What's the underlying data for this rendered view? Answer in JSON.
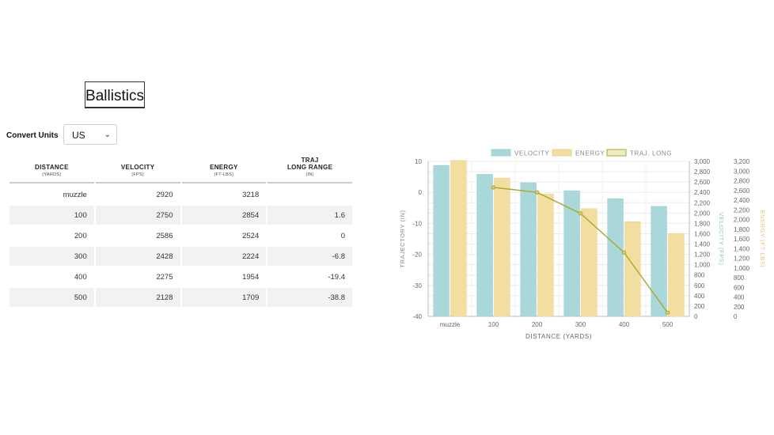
{
  "page": {
    "title": "Ballistics"
  },
  "units": {
    "label": "Convert Units",
    "selected": "US"
  },
  "table": {
    "headers": [
      {
        "title": "DISTANCE",
        "sub": "(YARDS)"
      },
      {
        "title": "VELOCITY",
        "sub": "(FPS)"
      },
      {
        "title": "ENERGY",
        "sub": "(FT-LBS)"
      },
      {
        "title": "TRAJ",
        "title2": "LONG RANGE",
        "sub": "(IN)"
      }
    ],
    "rows": [
      [
        "muzzle",
        "2920",
        "3218",
        ""
      ],
      [
        "100",
        "2750",
        "2854",
        "1.6"
      ],
      [
        "200",
        "2586",
        "2524",
        "0"
      ],
      [
        "300",
        "2428",
        "2224",
        "-6.8"
      ],
      [
        "400",
        "2275",
        "1954",
        "-19.4"
      ],
      [
        "500",
        "2128",
        "1709",
        "-38.8"
      ]
    ]
  },
  "chart_data": {
    "type": "bar",
    "categories": [
      "muzzle",
      "100",
      "200",
      "300",
      "400",
      "500"
    ],
    "series": [
      {
        "name": "VELOCITY",
        "type": "bar",
        "axis": "velocity",
        "values": [
          2920,
          2750,
          2586,
          2428,
          2275,
          2128
        ],
        "color": "#aad7da"
      },
      {
        "name": "ENERGY",
        "type": "bar",
        "axis": "energy",
        "values": [
          3218,
          2854,
          2524,
          2224,
          1954,
          1709
        ],
        "color": "#f2dea0"
      },
      {
        "name": "TRAJ. LONG",
        "type": "line",
        "axis": "trajectory",
        "values": [
          null,
          1.6,
          0,
          -6.8,
          -19.4,
          -38.8
        ],
        "color": "#a8a82c"
      }
    ],
    "xlabel": "DISTANCE (YARDS)",
    "axes": {
      "trajectory": {
        "label": "TRAJECTORY (IN)",
        "min": -40,
        "max": 10,
        "ticks": [
          "10",
          "0",
          "-10",
          "-20",
          "-30",
          "-40"
        ],
        "tick_values": [
          10,
          0,
          -10,
          -20,
          -30,
          -40
        ]
      },
      "velocity": {
        "label": "VELOCITY (FPS)",
        "min": 0,
        "max": 3000,
        "ticks": [
          "3,000",
          "2,800",
          "2,600",
          "2,400",
          "2,200",
          "2,000",
          "1,800",
          "1,600",
          "1,400",
          "1,200",
          "1,000",
          "800",
          "600",
          "400",
          "200",
          "0"
        ],
        "tick_values": [
          3000,
          2800,
          2600,
          2400,
          2200,
          2000,
          1800,
          1600,
          1400,
          1200,
          1000,
          800,
          600,
          400,
          200,
          0
        ]
      },
      "energy": {
        "label": "ENERGY (FT-LBS)",
        "min": 0,
        "max": 3200,
        "ticks": [
          "3,200",
          "3,000",
          "2,800",
          "2,600",
          "2,400",
          "2,200",
          "2,000",
          "1,800",
          "1,600",
          "1,400",
          "1,200",
          "1,000",
          "800",
          "600",
          "400",
          "200",
          "0"
        ],
        "tick_values": [
          3200,
          3000,
          2800,
          2600,
          2400,
          2200,
          2000,
          1800,
          1600,
          1400,
          1200,
          1000,
          800,
          600,
          400,
          200,
          0
        ]
      }
    },
    "legend": "top-center",
    "grid": true
  }
}
